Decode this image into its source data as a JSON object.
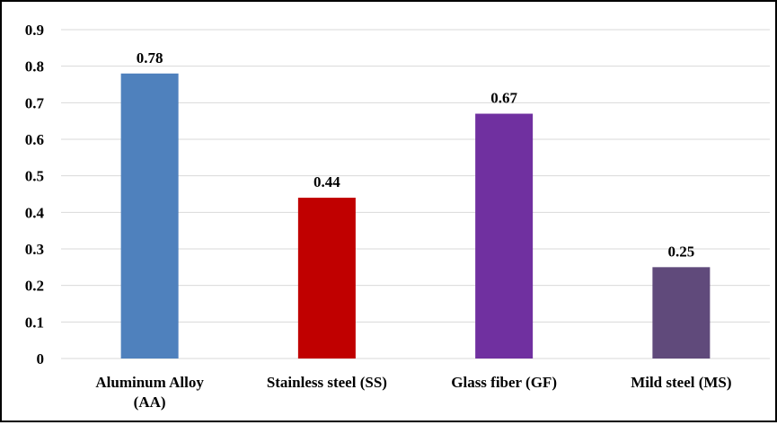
{
  "chart_data": {
    "type": "bar",
    "categories": [
      [
        "Aluminum Alloy",
        "(AA)"
      ],
      [
        "Stainless steel (SS)"
      ],
      [
        "Glass fiber (GF)"
      ],
      [
        "Mild steel (MS)"
      ]
    ],
    "values": [
      0.78,
      0.44,
      0.67,
      0.25
    ],
    "value_labels": [
      "0.78",
      "0.44",
      "0.67",
      "0.25"
    ],
    "colors": [
      "#4f81bd",
      "#c00000",
      "#7030a0",
      "#604a7b"
    ],
    "ylim": [
      0,
      0.9
    ],
    "yticks": [
      0,
      0.1,
      0.2,
      0.3,
      0.4,
      0.5,
      0.6,
      0.7,
      0.8,
      0.9
    ],
    "ytick_labels": [
      "0",
      "0.1",
      "0.2",
      "0.3",
      "0.4",
      "0.5",
      "0.6",
      "0.7",
      "0.8",
      "0.9"
    ],
    "grid": true,
    "grid_color": "#d9d9d9",
    "title": "",
    "xlabel": "",
    "ylabel": ""
  }
}
